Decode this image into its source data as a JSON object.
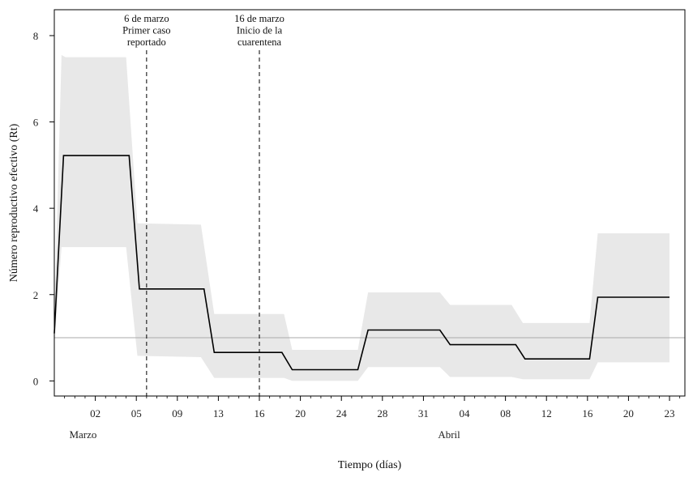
{
  "chart_data": {
    "type": "line",
    "title": "",
    "xlabel": "Tiempo (días)",
    "ylabel": "Número reproductivo efectivo (Rt)",
    "ylim": [
      -0.35,
      8.6
    ],
    "xlim": [
      0,
      61.5
    ],
    "yticks": [
      0,
      2,
      4,
      6,
      8
    ],
    "xticks": [
      {
        "x": 4,
        "label": "02"
      },
      {
        "x": 8,
        "label": "05"
      },
      {
        "x": 12,
        "label": "09"
      },
      {
        "x": 16,
        "label": "13"
      },
      {
        "x": 20,
        "label": "16"
      },
      {
        "x": 24,
        "label": "20"
      },
      {
        "x": 28,
        "label": "24"
      },
      {
        "x": 32,
        "label": "28"
      },
      {
        "x": 36,
        "label": "31"
      },
      {
        "x": 40,
        "label": "04"
      },
      {
        "x": 44,
        "label": "08"
      },
      {
        "x": 48,
        "label": "12"
      },
      {
        "x": 52,
        "label": "16"
      },
      {
        "x": 56,
        "label": "20"
      },
      {
        "x": 60,
        "label": "23"
      }
    ],
    "month_labels": [
      {
        "x": 2.8,
        "label": "Marzo"
      },
      {
        "x": 38.5,
        "label": "Abril"
      }
    ],
    "reference_line": 1,
    "grid": false,
    "series": [
      {
        "name": "Rt",
        "x": [
          0,
          0.9,
          7.3,
          8.3,
          14.6,
          15.6,
          22.2,
          23.2,
          29.6,
          30.6,
          37.6,
          38.6,
          45.0,
          45.9,
          52.2,
          53.0,
          60.0
        ],
        "values": [
          1.1,
          5.22,
          5.22,
          2.13,
          2.13,
          0.66,
          0.66,
          0.26,
          0.26,
          1.18,
          1.18,
          0.84,
          0.84,
          0.51,
          0.51,
          1.94,
          1.94
        ]
      }
    ],
    "band": {
      "x": [
        0,
        0.7,
        1.1,
        7.0,
        8.1,
        14.3,
        15.6,
        22.4,
        23.2,
        29.6,
        30.6,
        37.6,
        38.6,
        44.6,
        45.7,
        52.2,
        53.0,
        60.0
      ],
      "upper": [
        1.4,
        7.55,
        7.5,
        7.5,
        3.65,
        3.62,
        1.55,
        1.55,
        0.72,
        0.72,
        2.05,
        2.05,
        1.76,
        1.76,
        1.34,
        1.34,
        3.42,
        3.42
      ],
      "lower": [
        0.8,
        3.1,
        3.1,
        3.1,
        0.58,
        0.55,
        0.07,
        0.07,
        0.0,
        0.0,
        0.32,
        0.32,
        0.09,
        0.09,
        0.04,
        0.04,
        0.43,
        0.43
      ]
    },
    "annotations": [
      {
        "x": 9,
        "lines": [
          "6 de marzo",
          "Primer caso",
          "reportado"
        ]
      },
      {
        "x": 20,
        "lines": [
          "16 de marzo",
          "Inicio de la",
          "cuarentena"
        ]
      }
    ],
    "colors": {
      "line": "#000000",
      "band": "#e8e8e8",
      "reference": "#aaaaaa",
      "axis": "#000000"
    }
  }
}
